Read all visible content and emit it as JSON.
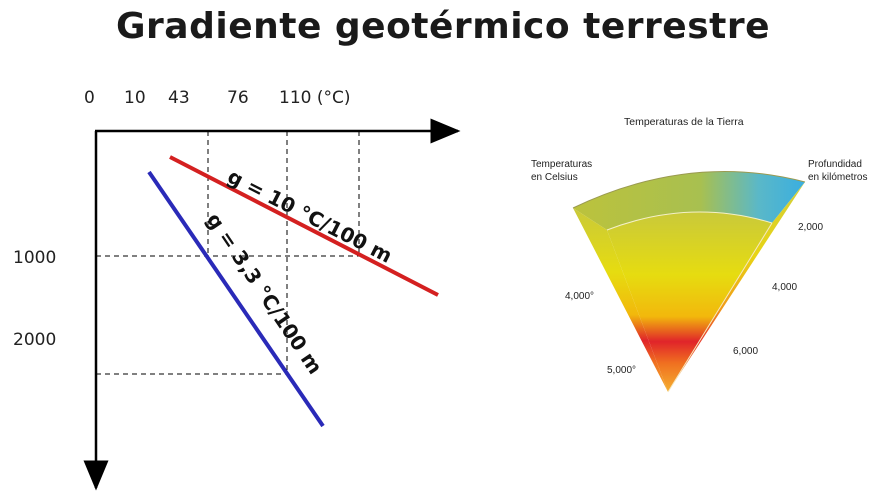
{
  "title": "Gradiente geotérmico terrestre",
  "diagram": {
    "temp_ticks": [
      "0",
      "10",
      "43",
      "76",
      "110 (°C)"
    ],
    "depth_ticks": [
      "1000",
      "2000"
    ],
    "line_red": {
      "label": "g = 10 °C/100 m",
      "color": "#d42020"
    },
    "line_blue": {
      "label": "g = 3,3 °C/100 m",
      "color": "#2a2ab8"
    }
  },
  "earth": {
    "title": "Temperaturas de la Tierra",
    "left_label": [
      "Temperaturas",
      "en Celsius"
    ],
    "right_label": [
      "Profundidad",
      "en kilómetros"
    ],
    "temps": [
      "4,000°",
      "5,000°"
    ],
    "depths": [
      "2,000",
      "4,000",
      "6,000"
    ]
  }
}
